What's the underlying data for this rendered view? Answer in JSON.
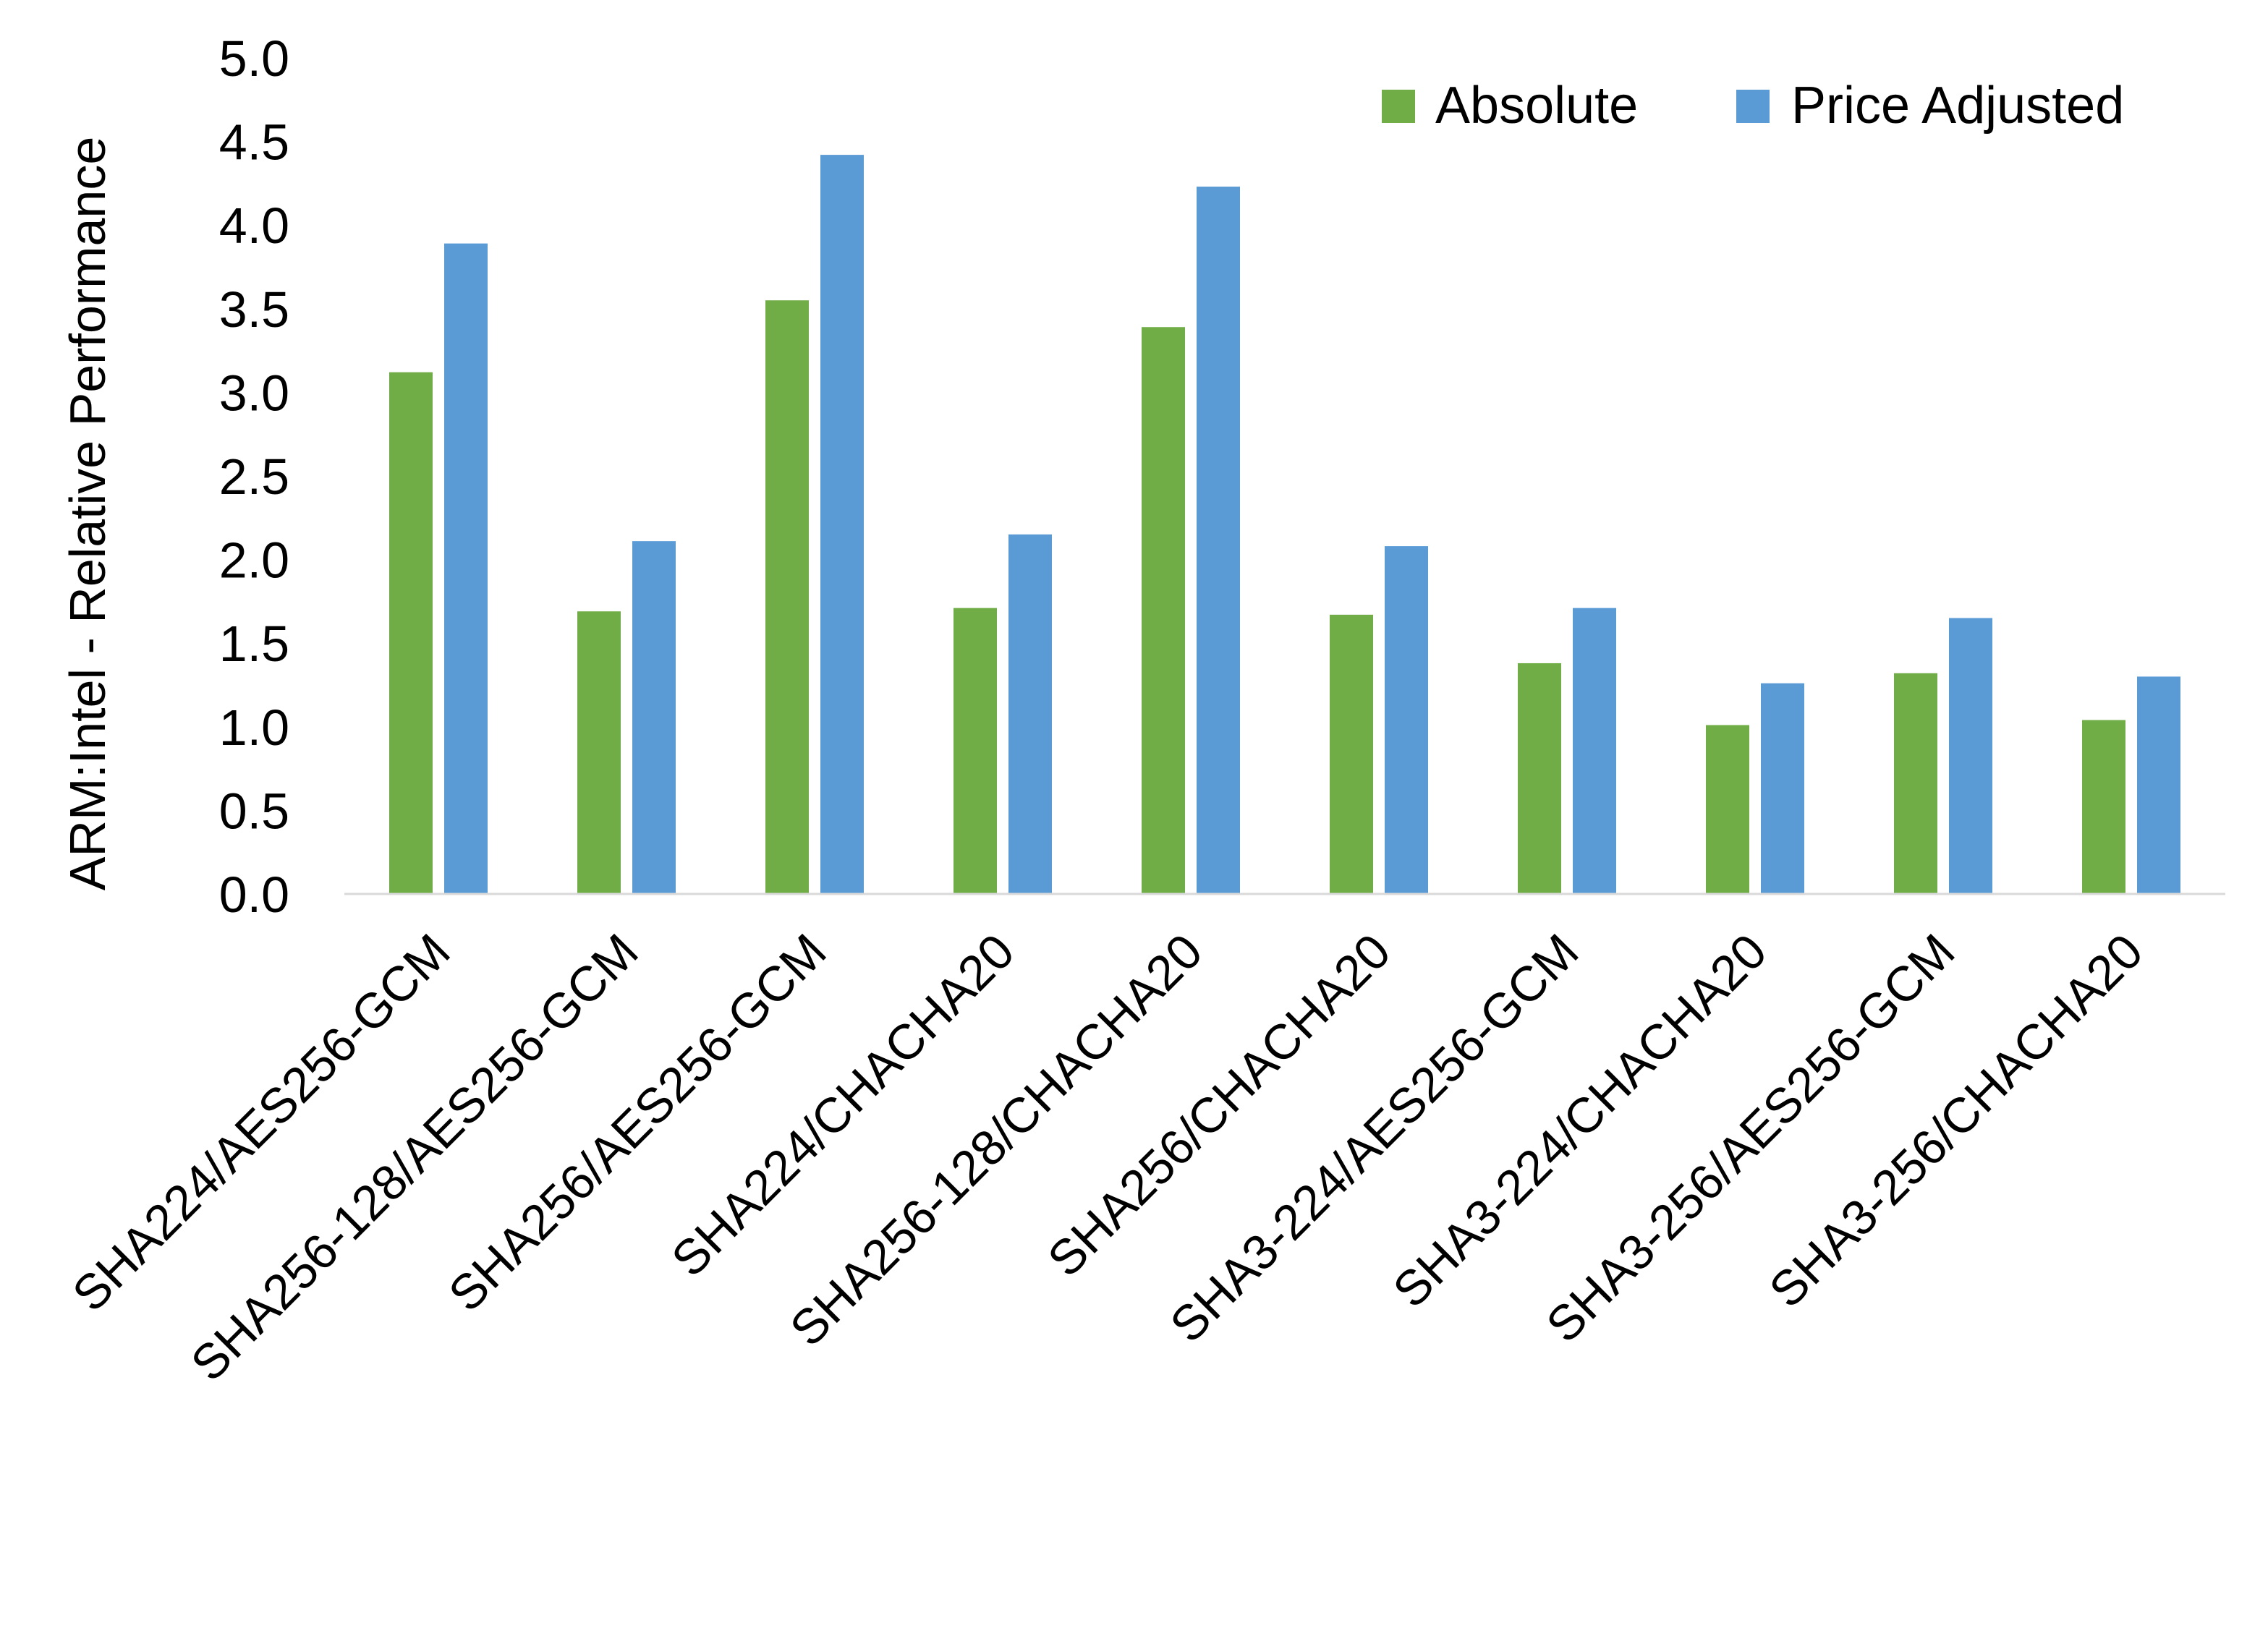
{
  "chart_data": {
    "type": "bar",
    "title": "",
    "xlabel": "",
    "ylabel": "ARM:Intel - Relative Performance",
    "ylim": [
      0,
      5.0
    ],
    "yticks": [
      "0.0",
      "0.5",
      "1.0",
      "1.5",
      "2.0",
      "2.5",
      "3.0",
      "3.5",
      "4.0",
      "4.5",
      "5.0"
    ],
    "grid": false,
    "legend_position": "top-right",
    "categories": [
      "SHA224/AES256-GCM",
      "SHA256-128/AES256-GCM",
      "SHA256/AES256-GCM",
      "SHA224/CHACHA20",
      "SHA256-128/CHACHA20",
      "SHA256/CHACHA20",
      "SHA3-224/AES256-GCM",
      "SHA3-224/CHACHA20",
      "SHA3-256/AES256-GCM",
      "SHA3-256/CHACHA20"
    ],
    "series": [
      {
        "name": "Absolute",
        "color": "#70AD47",
        "values": [
          3.12,
          1.69,
          3.55,
          1.71,
          3.39,
          1.67,
          1.38,
          1.01,
          1.32,
          1.04
        ]
      },
      {
        "name": "Price Adjusted",
        "color": "#5B9BD5",
        "values": [
          3.89,
          2.11,
          4.42,
          2.15,
          4.23,
          2.08,
          1.71,
          1.26,
          1.65,
          1.3
        ]
      }
    ]
  }
}
